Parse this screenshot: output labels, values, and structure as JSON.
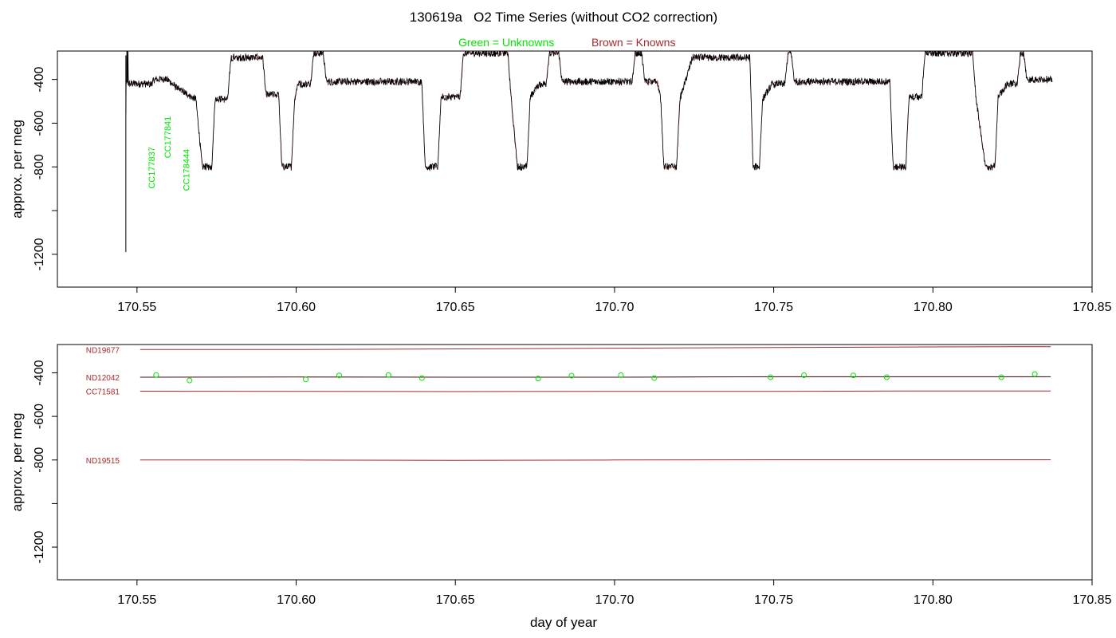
{
  "title": "130619a   O2 Time Series (without CO2 correction)",
  "legend": {
    "green": "Green = Unknowns",
    "brown": "Brown = Knowns"
  },
  "colors": {
    "unknown": "#00e600",
    "known": "#a52a2a",
    "trace": "#000000"
  },
  "xlabel": "day of year",
  "chart_data": [
    {
      "type": "line",
      "panel": "top",
      "title": "130619a   O2 Time Series (without CO2 correction)",
      "xlabel": "",
      "ylabel": "approx. per meg",
      "xlim": [
        170.525,
        170.85
      ],
      "ylim": [
        -1350,
        -270
      ],
      "xticks": [
        170.55,
        170.6,
        170.65,
        170.7,
        170.75,
        170.8,
        170.85
      ],
      "yticks": [
        -400,
        -600,
        -800,
        -1000,
        -1200
      ],
      "ytick_labels": [
        "-400",
        "-600",
        "-800",
        "",
        "-1200"
      ],
      "grid": false,
      "series": [
        {
          "segments": [
            [
              170.5465,
              -420
            ],
            [
              170.5545,
              -420
            ],
            [
              170.5555,
              -400
            ],
            [
              170.5595,
              -400
            ],
            [
              170.5625,
              -440
            ],
            [
              170.5685,
              -490
            ],
            [
              170.5705,
              -800
            ],
            [
              170.5735,
              -800
            ],
            [
              170.5745,
              -490
            ],
            [
              170.5785,
              -490
            ],
            [
              170.5795,
              -300
            ],
            [
              170.5895,
              -300
            ],
            [
              170.5905,
              -470
            ],
            [
              170.5945,
              -470
            ],
            [
              170.5955,
              -800
            ],
            [
              170.5985,
              -800
            ],
            [
              170.5995,
              -490
            ],
            [
              170.6005,
              -420
            ],
            [
              170.6045,
              -420
            ],
            [
              170.6055,
              -280
            ],
            [
              170.6085,
              -280
            ],
            [
              170.6095,
              -410
            ],
            [
              170.6395,
              -410
            ],
            [
              170.6405,
              -800
            ],
            [
              170.6445,
              -800
            ],
            [
              170.6455,
              -480
            ],
            [
              170.6515,
              -480
            ],
            [
              170.6525,
              -280
            ],
            [
              170.6665,
              -280
            ],
            [
              170.6675,
              -480
            ],
            [
              170.6695,
              -800
            ],
            [
              170.6725,
              -800
            ],
            [
              170.6735,
              -480
            ],
            [
              170.6765,
              -420
            ],
            [
              170.6785,
              -420
            ],
            [
              170.6795,
              -280
            ],
            [
              170.6825,
              -280
            ],
            [
              170.6835,
              -410
            ],
            [
              170.7055,
              -410
            ],
            [
              170.7065,
              -280
            ],
            [
              170.7085,
              -280
            ],
            [
              170.7095,
              -410
            ],
            [
              170.7135,
              -410
            ],
            [
              170.7145,
              -490
            ],
            [
              170.7155,
              -800
            ],
            [
              170.7195,
              -800
            ],
            [
              170.7205,
              -490
            ],
            [
              170.7245,
              -300
            ],
            [
              170.7425,
              -300
            ],
            [
              170.7435,
              -800
            ],
            [
              170.7455,
              -800
            ],
            [
              170.7465,
              -490
            ],
            [
              170.7495,
              -420
            ],
            [
              170.7535,
              -420
            ],
            [
              170.7545,
              -280
            ],
            [
              170.7555,
              -280
            ],
            [
              170.7565,
              -410
            ],
            [
              170.7865,
              -410
            ],
            [
              170.7875,
              -800
            ],
            [
              170.7915,
              -800
            ],
            [
              170.7925,
              -480
            ],
            [
              170.7965,
              -480
            ],
            [
              170.7975,
              -280
            ],
            [
              170.8125,
              -280
            ],
            [
              170.8135,
              -480
            ],
            [
              170.8165,
              -800
            ],
            [
              170.8195,
              -800
            ],
            [
              170.8205,
              -480
            ],
            [
              170.8235,
              -420
            ],
            [
              170.8265,
              -420
            ],
            [
              170.8275,
              -280
            ],
            [
              170.8285,
              -280
            ],
            [
              170.8295,
              -400
            ],
            [
              170.8375,
              -400
            ]
          ]
        }
      ],
      "annotations": [
        {
          "text": "CC177837",
          "x": 170.5555,
          "y": -900,
          "color": "#00e600",
          "rotation": 90
        },
        {
          "text": "CC177841",
          "x": 170.5605,
          "y": -760,
          "color": "#00e600",
          "rotation": 90
        },
        {
          "text": "CC178444",
          "x": 170.5665,
          "y": -910,
          "color": "#00e600",
          "rotation": 90
        }
      ]
    },
    {
      "type": "scatter",
      "panel": "bottom",
      "xlabel": "day of year",
      "ylabel": "approx. per meg",
      "xlim": [
        170.525,
        170.85
      ],
      "ylim": [
        -1350,
        -270
      ],
      "xticks": [
        170.55,
        170.6,
        170.65,
        170.7,
        170.75,
        170.8,
        170.85
      ],
      "yticks": [
        -400,
        -600,
        -800,
        -1000,
        -1200
      ],
      "ytick_labels": [
        "-400",
        "-600",
        "-800",
        "",
        "-1200"
      ],
      "grid": false,
      "reference_lines": [
        {
          "name": "ND19677",
          "color": "#a52a2a",
          "x": [
            170.551,
            170.6,
            170.65,
            170.7,
            170.75,
            170.8,
            170.837
          ],
          "y": [
            -293,
            -293,
            -290,
            -287,
            -284,
            -281,
            -280
          ]
        },
        {
          "name": "ND12042",
          "color": "#a52a2a",
          "x": [
            170.551,
            170.6,
            170.65,
            170.7,
            170.75,
            170.8,
            170.837
          ],
          "y": [
            -420,
            -419,
            -420,
            -420,
            -418,
            -418,
            -418
          ]
        },
        {
          "name": "CC71581",
          "color": "#a52a2a",
          "x": [
            170.551,
            170.6,
            170.65,
            170.7,
            170.75,
            170.8,
            170.837
          ],
          "y": [
            -484,
            -485,
            -486,
            -485,
            -485,
            -483,
            -483
          ]
        },
        {
          "name": "ND19515",
          "color": "#a52a2a",
          "x": [
            170.551,
            170.6,
            170.65,
            170.7,
            170.75,
            170.8,
            170.837
          ],
          "y": [
            -800,
            -800,
            -802,
            -800,
            -799,
            -799,
            -799
          ]
        }
      ],
      "points": {
        "x": [
          170.556,
          170.5665,
          170.603,
          170.6135,
          170.629,
          170.6395,
          170.676,
          170.6865,
          170.702,
          170.7125,
          170.749,
          170.7595,
          170.775,
          170.7855,
          170.8215,
          170.832
        ],
        "y": [
          -410,
          -435,
          -430,
          -412,
          -410,
          -424,
          -426,
          -413,
          -411,
          -424,
          -420,
          -411,
          -412,
          -420,
          -420,
          -406
        ]
      }
    }
  ]
}
